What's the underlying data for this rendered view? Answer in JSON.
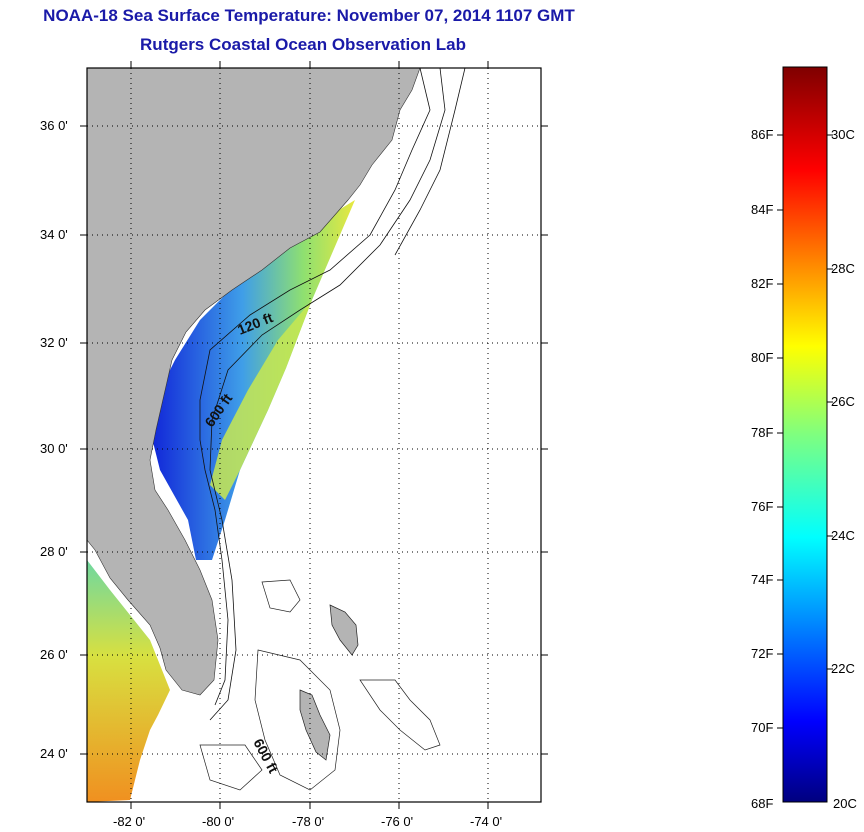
{
  "title": "NOAA-18 Sea Surface Temperature:  November 07, 2014 1107 GMT",
  "subtitle": "Rutgers Coastal Ocean Observation Lab",
  "map": {
    "lat_labels": [
      "36 0'",
      "34 0'",
      "32 0'",
      "30 0'",
      "28 0'",
      "26 0'",
      "24 0'"
    ],
    "lon_labels": [
      "-82 0'",
      "-80 0'",
      "-78 0'",
      "-76 0'",
      "-74 0'"
    ],
    "lat_range": [
      23.0,
      37.1
    ],
    "lon_range": [
      -83.0,
      -72.8
    ],
    "isobath_labels": [
      "120 ft",
      "600 ft",
      "600 ft"
    ],
    "land_color": "#b4b4b4",
    "grid": "dotted"
  },
  "colorbar": {
    "fahrenheit_labels": [
      "86F",
      "84F",
      "82F",
      "80F",
      "78F",
      "76F",
      "74F",
      "72F",
      "70F",
      "68F"
    ],
    "celsius_labels": [
      "30C",
      "28C",
      "26C",
      "24C",
      "22C",
      "20C"
    ],
    "range_c": [
      20,
      31
    ],
    "colormap": "jet"
  }
}
